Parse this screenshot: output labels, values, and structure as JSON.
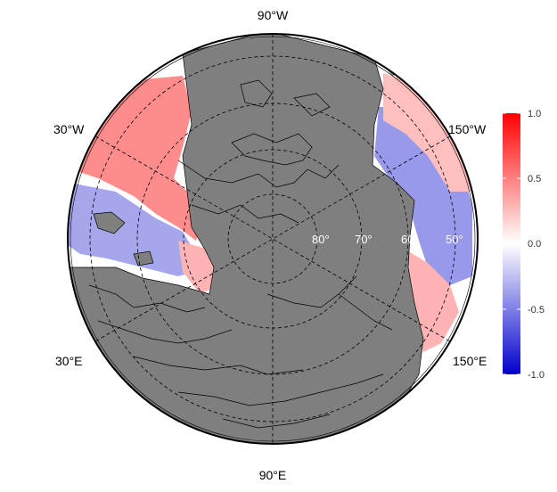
{
  "map": {
    "projection": "north polar stereographic",
    "land_color": "#7f7f7f",
    "border_color": "#000000",
    "ocean_background": "#ffffff",
    "longitude_labels": {
      "top": "90°W",
      "upper_left": "30°W",
      "upper_right": "150°W",
      "lower_left": "30°E",
      "lower_right": "150°E",
      "bottom": "90°E"
    },
    "latitude_labels": [
      "80°",
      "70°",
      "60°",
      "50°"
    ],
    "latitude_circles_deg": [
      80,
      70,
      60,
      50
    ],
    "meridian_spokes": 6,
    "gridline_style": "dashed"
  },
  "colorbar": {
    "min": -1.0,
    "max": 1.0,
    "ticks": [
      "1.0",
      "0.5",
      "0.0",
      "-0.5",
      "-1.0"
    ],
    "colors": {
      "high": "#ff0000",
      "mid": "#ffffff",
      "low": "#0000cc"
    }
  },
  "field_regions": [
    {
      "name": "greenland-labrador-sea-red",
      "value": 0.45
    },
    {
      "name": "north-atlantic-blue",
      "value": -0.35
    },
    {
      "name": "barents-sea-red",
      "value": 0.3
    },
    {
      "name": "north-pacific-blue",
      "value": -0.4
    },
    {
      "name": "bering-red",
      "value": 0.25
    },
    {
      "name": "alaska-coast-red",
      "value": 0.3
    }
  ]
}
